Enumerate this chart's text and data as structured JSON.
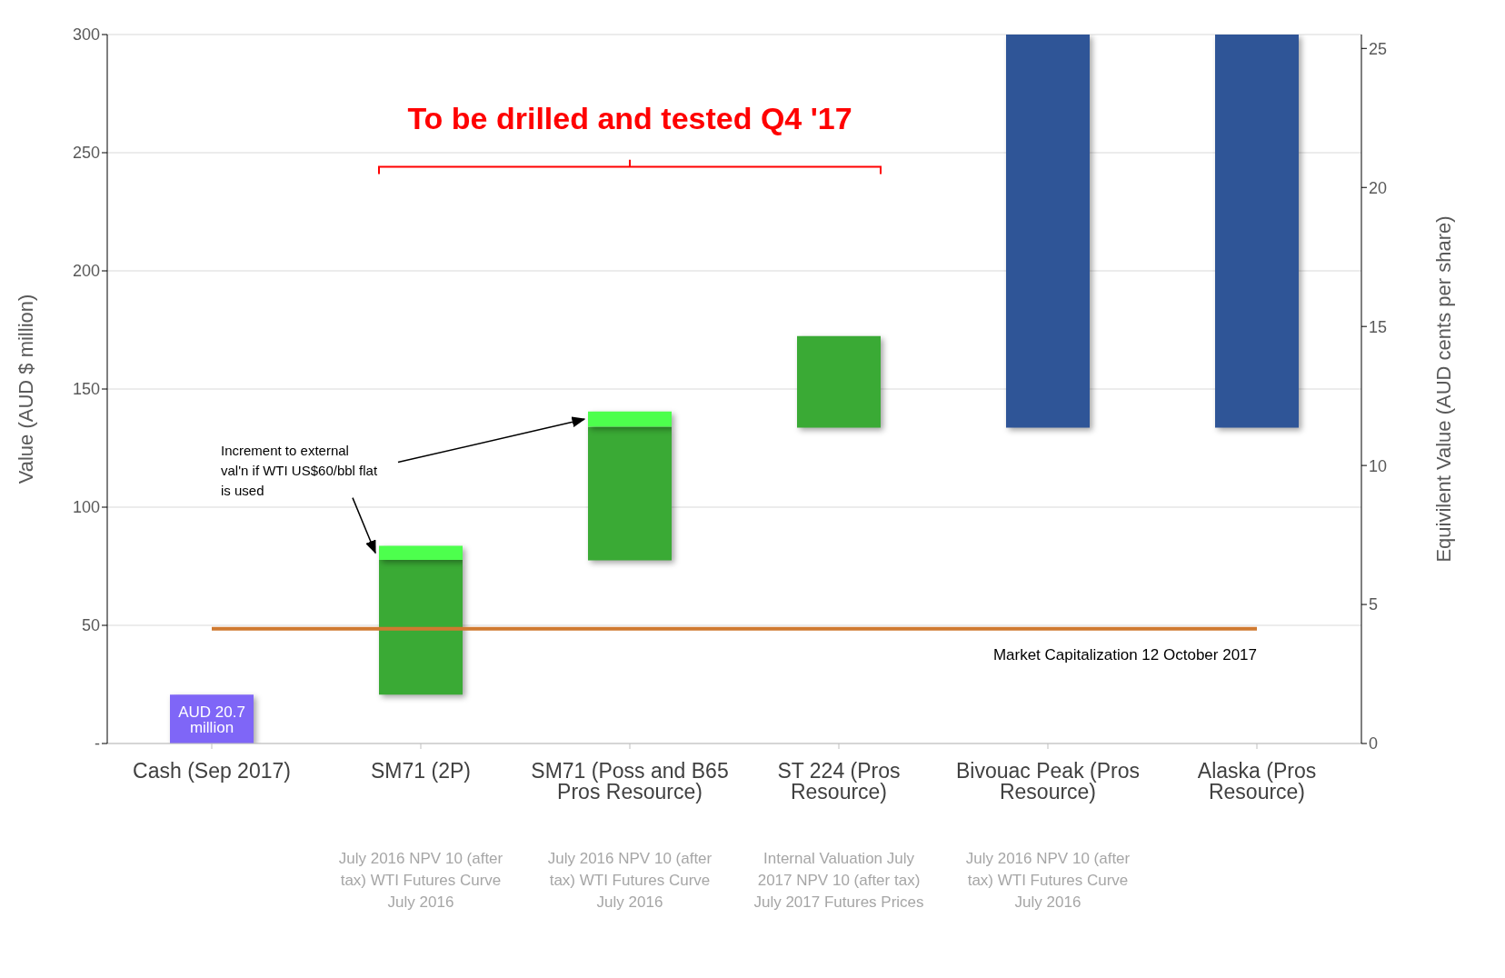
{
  "chart_data": {
    "type": "bar",
    "title": "To be drilled and tested Q4 '17",
    "ylabel": "Value (AUD $ million)",
    "y2label": "Equivilent Value (AUD cents per share)",
    "categories": [
      "Cash (Sep 2017)",
      "SM71 (2P)",
      "SM71 (Poss and B65 Pros Resource)",
      "ST 224 (Pros Resource)",
      "Bivouac Peak (Pros Resource)",
      "Alaska (Pros Resource)"
    ],
    "series": [
      {
        "colors": [
          "#7f66f7",
          "#3aaa35",
          "#3aaa35",
          "#3aaa35",
          "#2f5597",
          "#2f5597"
        ],
        "values": [
          20.7,
          57,
          56.5,
          38.7,
          166.3,
          166.3
        ],
        "base": [
          0,
          20.7,
          77.5,
          133.7,
          133.7,
          133.7
        ],
        "value_labels": [
          "AUD 20.7 million",
          null,
          null,
          null,
          null,
          null
        ]
      },
      {
        "color": "#4dff4d",
        "values": [
          null,
          6,
          6.5,
          null,
          null,
          null
        ],
        "base": [
          null,
          77.7,
          134,
          null,
          null,
          null
        ]
      }
    ],
    "ylim": [
      0,
      300
    ],
    "yticks": [
      {
        "value": 0,
        "label": "-"
      },
      50,
      100,
      150,
      200,
      250,
      300
    ],
    "y2lim": [
      0,
      25.5
    ],
    "y2ticks": [
      0,
      5,
      10,
      15,
      20,
      25
    ],
    "grid": "y",
    "ref_lines": [
      {
        "axis": "y",
        "value": 48.6,
        "label": "Market Capitalization 12 October 2017",
        "color": "#d07a30"
      }
    ],
    "annotations": [
      "Increment to external val'n if WTI US$60/bbl flat is used",
      "July 2016 NPV 10 (after tax) WTI Futures Curve July 2016",
      "July 2016 NPV 10 (after tax) WTI Futures Curve July 2016",
      "Internal Valuation July 2017 NPV 10 (after tax) July 2017 Futures Prices",
      "July 2016 NPV 10 (after tax) WTI Futures Curve July 2016"
    ]
  }
}
